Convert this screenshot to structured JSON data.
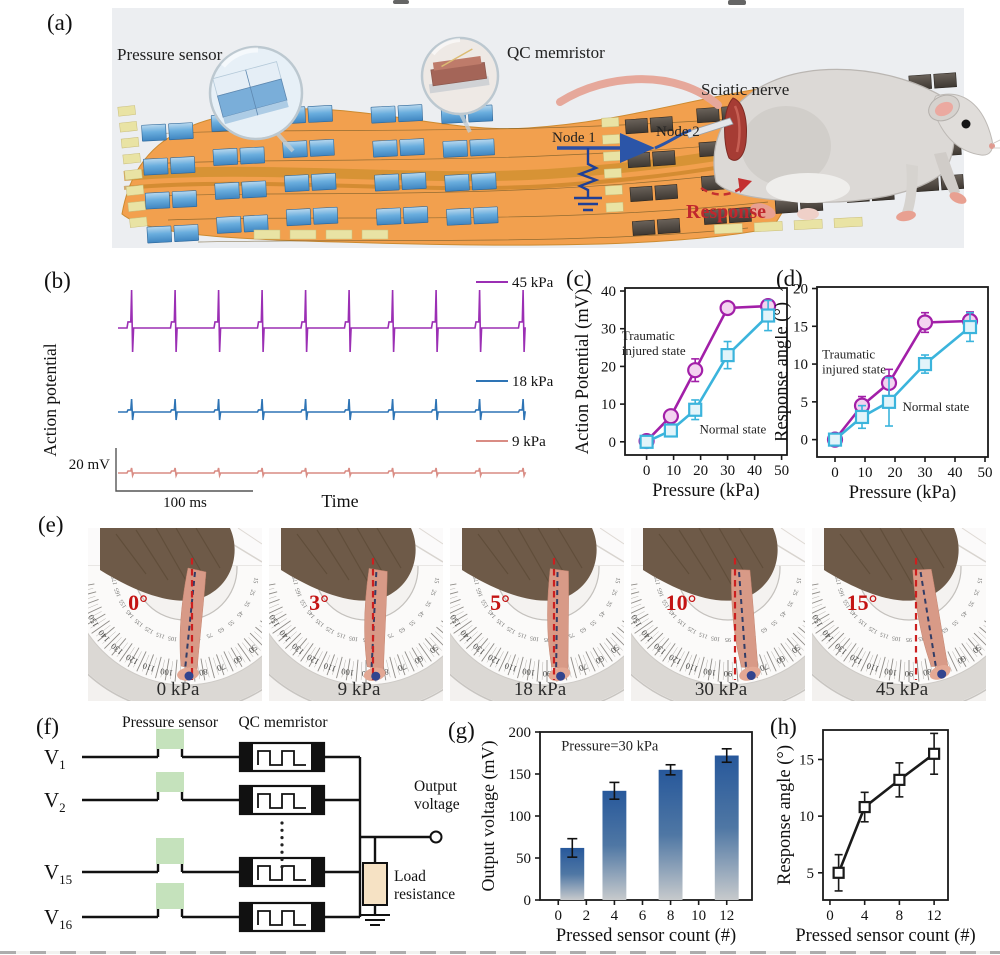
{
  "panel_labels": {
    "a": "(a)",
    "b": "(b)",
    "c": "(c)",
    "d": "(d)",
    "e": "(e)",
    "f": "(f)",
    "g": "(g)",
    "h": "(h)"
  },
  "panel_a": {
    "pressure_sensor_label": "Pressure sensor",
    "qc_memristor_label": "QC memristor",
    "sciatic_nerve_label": "Sciatic nerve",
    "node1_label": "Node 1",
    "node2_label": "Node 2",
    "response_label": "Response",
    "response_color": "#c0272d"
  },
  "chart_data": [
    {
      "id": "b",
      "type": "line",
      "subtype": "spike-trains",
      "ylabel": "Action potential",
      "xlabel": "Time",
      "scalebar_v": "20 mV",
      "scalebar_h": "100 ms",
      "traces": [
        {
          "label": "45 kPa",
          "color": "#9B2FB4",
          "spike_count": 10,
          "relative_amplitude": "large"
        },
        {
          "label": "18 kPa",
          "color": "#2E74B5",
          "spike_count": 10,
          "relative_amplitude": "medium"
        },
        {
          "label": "9 kPa",
          "color": "#D98C84",
          "spike_count": 10,
          "relative_amplitude": "small"
        }
      ]
    },
    {
      "id": "c",
      "type": "scatter",
      "xlabel": "Pressure (kPa)",
      "ylabel": "Action Potential (mV)",
      "xticks": [
        0,
        10,
        20,
        30,
        40,
        50
      ],
      "yticks": [
        0,
        10,
        20,
        30,
        40
      ],
      "xlim": [
        -8,
        52
      ],
      "ylim": [
        -3.5,
        40.8
      ],
      "series": [
        {
          "name": "Traumatic injured state",
          "marker": "circle",
          "color": "#A21FA8",
          "fill": "#F3D3F0",
          "x": [
            0,
            9,
            18,
            30,
            45
          ],
          "y": [
            0.2,
            6.8,
            19,
            35.5,
            36
          ],
          "err": [
            0.7,
            1.2,
            3,
            1.2,
            1.5
          ]
        },
        {
          "name": "Normal state",
          "marker": "square",
          "color": "#3BB4DC",
          "fill": "#E2F4FA",
          "x": [
            0,
            9,
            18,
            30,
            45
          ],
          "y": [
            0,
            3,
            8.5,
            23,
            33.5
          ],
          "err": [
            0.7,
            1.3,
            2.6,
            3.6,
            4
          ]
        }
      ],
      "annotations": [
        {
          "lines": [
            "Traumatic",
            "injured state"
          ],
          "fx": -0.02,
          "fy": 0.31
        },
        {
          "lines": [
            "Normal state"
          ],
          "fx": 0.46,
          "fy": 0.87
        }
      ]
    },
    {
      "id": "d",
      "type": "scatter",
      "xlabel": "Pressure (kPa)",
      "ylabel": "Response angle (°)",
      "xticks": [
        0,
        10,
        20,
        30,
        40,
        50
      ],
      "yticks": [
        0,
        5,
        10,
        15,
        20
      ],
      "xlim": [
        -6,
        51
      ],
      "ylim": [
        -2.3,
        20.2
      ],
      "series": [
        {
          "name": "Traumatic injured state",
          "marker": "circle",
          "color": "#A21FA8",
          "fill": "#F3D3F0",
          "x": [
            0,
            9,
            18,
            30,
            45
          ],
          "y": [
            0,
            4.5,
            7.5,
            15.5,
            15.7
          ],
          "err": [
            0.5,
            1.2,
            1.8,
            1.3,
            1.2
          ]
        },
        {
          "name": "Normal state",
          "marker": "square",
          "color": "#3BB4DC",
          "fill": "#E2F4FA",
          "x": [
            0,
            9,
            18,
            30,
            45
          ],
          "y": [
            0,
            3,
            5,
            10,
            14.9
          ],
          "err": [
            0.5,
            1.5,
            3.2,
            1.2,
            1.9
          ]
        }
      ],
      "annotations": [
        {
          "lines": [
            "Traumatic",
            "injured state"
          ],
          "fx": 0.03,
          "fy": 0.42
        },
        {
          "lines": [
            "Normal state"
          ],
          "fx": 0.5,
          "fy": 0.73
        }
      ]
    },
    {
      "id": "g",
      "type": "bar",
      "xlabel": "Pressed sensor count (#)",
      "ylabel": "Output voltage (mV)",
      "annotation": "Pressure=30 kPa",
      "xticks": [
        0,
        2,
        4,
        6,
        8,
        10,
        12
      ],
      "yticks": [
        0,
        50,
        100,
        150,
        200
      ],
      "xlim": [
        -1.3,
        13.8
      ],
      "ylim": [
        0,
        200
      ],
      "categories": [
        1,
        4,
        8,
        12
      ],
      "values": [
        62,
        130,
        155,
        172
      ],
      "err": [
        11,
        10,
        6,
        8
      ],
      "bar_top_color": "#27589B",
      "bar_bottom_color": "#C7CACC"
    },
    {
      "id": "h",
      "type": "scatter",
      "xlabel": "Pressed sensor count (#)",
      "ylabel": "Response angle (°)",
      "xticks": [
        0,
        4,
        8,
        12
      ],
      "yticks": [
        5,
        10,
        15
      ],
      "xlim": [
        -0.8,
        13.6
      ],
      "ylim": [
        2.6,
        17.6
      ],
      "series": [
        {
          "name": "",
          "marker": "square",
          "color": "#1a1a1a",
          "fill": "#ffffff",
          "x": [
            1,
            4,
            8,
            12
          ],
          "y": [
            5,
            10.8,
            13.2,
            15.5
          ],
          "err": [
            1.6,
            1.3,
            1.5,
            1.8
          ]
        }
      ],
      "annotations": []
    }
  ],
  "panel_e": {
    "items": [
      {
        "angle": "0°",
        "pressure": "0 kPa",
        "tilt": 0
      },
      {
        "angle": "3°",
        "pressure": "9 kPa",
        "tilt": 3
      },
      {
        "angle": "5°",
        "pressure": "18 kPa",
        "tilt": 5
      },
      {
        "angle": "10°",
        "pressure": "30 kPa",
        "tilt": 10
      },
      {
        "angle": "15°",
        "pressure": "45 kPa",
        "tilt": 15
      }
    ]
  },
  "panel_f": {
    "pressure_sensor_label": "Pressure sensor",
    "qc_memristor_label": "QC memristor",
    "output_lines": [
      "Output",
      "voltage"
    ],
    "load_lines": [
      "Load",
      "resistance"
    ],
    "rows": [
      {
        "name": "V",
        "sub": "1"
      },
      {
        "name": "V",
        "sub": "2"
      },
      {
        "name": "V",
        "sub": "15"
      },
      {
        "name": "V",
        "sub": "16"
      }
    ]
  }
}
